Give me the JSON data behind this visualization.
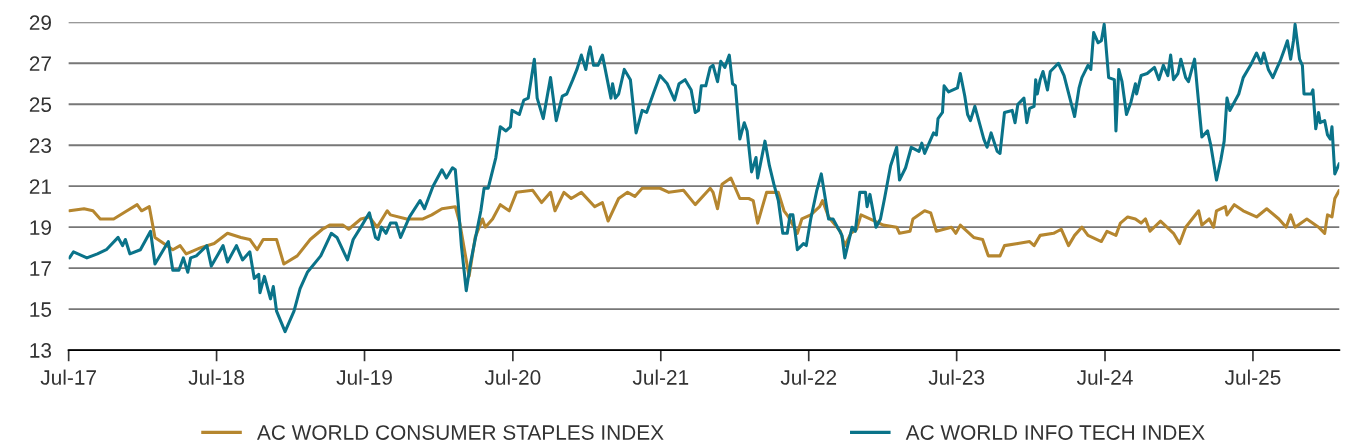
{
  "chart_data": {
    "type": "line",
    "xlim": [
      "2017-07-01",
      "2026-01-30"
    ],
    "ylim": [
      13,
      29
    ],
    "xticks": [
      {
        "value": "2017-07-01",
        "label": "Jul-17"
      },
      {
        "value": "2018-07-01",
        "label": "Jul-18"
      },
      {
        "value": "2019-07-01",
        "label": "Jul-19"
      },
      {
        "value": "2020-07-01",
        "label": "Jul-20"
      },
      {
        "value": "2021-07-01",
        "label": "Jul-21"
      },
      {
        "value": "2022-07-01",
        "label": "Jul-22"
      },
      {
        "value": "2023-07-01",
        "label": "Jul-23"
      },
      {
        "value": "2024-07-01",
        "label": "Jul-24"
      },
      {
        "value": "2025-07-01",
        "label": "Jul-25"
      }
    ],
    "yticks": [
      13,
      15,
      17,
      19,
      21,
      23,
      25,
      27,
      29
    ],
    "grid": "y",
    "legend": "bottom",
    "series": [
      {
        "name": "AC WORLD CONSUMER STAPLES INDEX",
        "color": "#b5862f",
        "x": [
          "2017-07-03",
          "2017-08-08",
          "2017-08-30",
          "2017-09-17",
          "2017-10-20",
          "2017-11-22",
          "2017-12-17",
          "2017-12-28",
          "2018-01-16",
          "2018-01-30",
          "2018-02-28",
          "2018-03-15",
          "2018-04-02",
          "2018-04-17",
          "2018-05-23",
          "2018-06-25",
          "2018-07-28",
          "2018-08-30",
          "2018-09-21",
          "2018-10-09",
          "2018-10-24",
          "2018-11-26",
          "2018-12-14",
          "2019-01-16",
          "2019-02-17",
          "2019-03-19",
          "2019-04-06",
          "2019-05-09",
          "2019-05-23",
          "2019-06-22",
          "2019-07-13",
          "2019-08-01",
          "2019-08-26",
          "2019-09-03",
          "2019-10-13",
          "2019-11-22",
          "2019-12-14",
          "2020-01-08",
          "2020-02-10",
          "2020-02-21",
          "2020-03-15",
          "2020-03-30",
          "2020-04-17",
          "2020-04-24",
          "2020-05-12",
          "2020-05-31",
          "2020-06-22",
          "2020-07-10",
          "2020-08-19",
          "2020-09-10",
          "2020-10-02",
          "2020-10-13",
          "2020-11-04",
          "2020-11-22",
          "2020-12-17",
          "2021-01-19",
          "2021-02-07",
          "2021-02-21",
          "2021-03-19",
          "2021-04-10",
          "2021-04-28",
          "2021-05-16",
          "2021-06-29",
          "2021-07-21",
          "2021-08-26",
          "2021-09-24",
          "2021-10-31",
          "2021-11-07",
          "2021-11-18",
          "2021-11-29",
          "2021-12-21",
          "2022-01-12",
          "2022-02-03",
          "2022-02-14",
          "2022-02-25",
          "2022-03-19",
          "2022-04-17",
          "2022-05-01",
          "2022-05-12",
          "2022-06-03",
          "2022-06-14",
          "2022-07-06",
          "2022-07-28",
          "2022-08-04",
          "2022-08-19",
          "2022-09-17",
          "2022-09-28",
          "2022-10-13",
          "2022-10-27",
          "2022-11-07",
          "2022-11-29",
          "2023-01-01",
          "2023-02-03",
          "2023-02-10",
          "2023-03-08",
          "2023-03-15",
          "2023-04-13",
          "2023-04-28",
          "2023-05-12",
          "2023-06-18",
          "2023-06-29",
          "2023-07-10",
          "2023-08-12",
          "2023-09-03",
          "2023-09-17",
          "2023-10-16",
          "2023-10-27",
          "2023-11-29",
          "2023-12-28",
          "2024-01-08",
          "2024-01-23",
          "2024-02-25",
          "2024-03-15",
          "2024-04-02",
          "2024-04-17",
          "2024-05-05",
          "2024-05-20",
          "2024-06-22",
          "2024-07-06",
          "2024-07-28",
          "2024-08-08",
          "2024-08-26",
          "2024-09-14",
          "2024-09-28",
          "2024-10-09",
          "2024-10-20",
          "2024-11-15",
          "2024-12-17",
          "2025-01-01",
          "2025-01-16",
          "2025-02-17",
          "2025-02-25",
          "2025-03-15",
          "2025-03-26",
          "2025-04-02",
          "2025-04-24",
          "2025-04-28",
          "2025-05-16",
          "2025-06-07",
          "2025-07-10",
          "2025-08-04",
          "2025-09-03",
          "2025-09-21",
          "2025-10-02",
          "2025-10-13",
          "2025-11-11",
          "2025-12-10",
          "2025-12-25",
          "2026-01-01",
          "2026-01-12",
          "2026-01-19",
          "2026-01-30"
        ],
        "values": [
          19.8,
          19.9,
          19.8,
          19.4,
          19.4,
          19.8,
          20.1,
          19.8,
          20.0,
          18.5,
          18.1,
          17.9,
          18.1,
          17.7,
          18.0,
          18.2,
          18.7,
          18.5,
          18.4,
          17.9,
          18.4,
          18.4,
          17.2,
          17.6,
          18.4,
          18.9,
          19.1,
          19.1,
          18.9,
          19.4,
          19.5,
          19.0,
          19.8,
          19.6,
          19.4,
          19.4,
          19.6,
          19.9,
          20.0,
          19.2,
          16.6,
          18.5,
          19.4,
          19.0,
          19.4,
          20.1,
          19.8,
          20.7,
          20.8,
          20.2,
          20.7,
          19.8,
          20.7,
          20.4,
          20.7,
          20.0,
          20.2,
          19.3,
          20.4,
          20.7,
          20.5,
          20.9,
          20.9,
          20.7,
          20.8,
          20.1,
          20.9,
          20.7,
          19.9,
          21.1,
          21.4,
          20.4,
          20.4,
          20.3,
          19.2,
          20.7,
          20.7,
          19.8,
          19.5,
          18.7,
          19.4,
          19.6,
          20.0,
          20.3,
          19.5,
          18.8,
          18.1,
          18.7,
          18.9,
          19.6,
          19.4,
          19.1,
          19.0,
          18.7,
          18.8,
          19.4,
          19.8,
          19.7,
          18.8,
          19.0,
          18.7,
          19.1,
          18.5,
          18.4,
          17.6,
          17.6,
          18.1,
          18.2,
          18.3,
          18.1,
          18.6,
          18.7,
          18.9,
          18.1,
          18.6,
          19.0,
          18.6,
          18.3,
          18.8,
          18.6,
          19.2,
          19.5,
          19.4,
          19.2,
          19.4,
          18.8,
          19.3,
          18.7,
          18.2,
          19.0,
          19.8,
          19.1,
          19.4,
          19.0,
          19.8,
          20.0,
          19.6,
          20.1,
          19.8,
          19.5,
          19.9,
          19.4,
          19.0,
          19.6,
          19.0,
          19.4,
          19.0,
          18.7,
          19.6,
          19.5,
          20.4,
          20.8
        ]
      },
      {
        "name": "AC WORLD INFO TECH INDEX",
        "color": "#0a7389",
        "x": [
          "2017-07-03",
          "2017-07-13",
          "2017-08-15",
          "2017-09-10",
          "2017-10-02",
          "2017-10-31",
          "2017-11-11",
          "2017-11-18",
          "2017-11-29",
          "2017-12-25",
          "2018-01-19",
          "2018-01-30",
          "2018-03-04",
          "2018-03-15",
          "2018-03-30",
          "2018-04-10",
          "2018-04-21",
          "2018-04-28",
          "2018-05-12",
          "2018-06-07",
          "2018-06-18",
          "2018-07-17",
          "2018-07-28",
          "2018-08-19",
          "2018-09-03",
          "2018-09-21",
          "2018-10-02",
          "2018-10-13",
          "2018-10-16",
          "2018-10-27",
          "2018-11-11",
          "2018-11-18",
          "2018-11-26",
          "2018-12-17",
          "2019-01-08",
          "2019-01-23",
          "2019-02-10",
          "2019-03-15",
          "2019-04-10",
          "2019-04-24",
          "2019-05-20",
          "2019-06-03",
          "2019-06-25",
          "2019-07-13",
          "2019-07-28",
          "2019-08-04",
          "2019-08-12",
          "2019-08-23",
          "2019-09-03",
          "2019-09-17",
          "2019-09-28",
          "2019-10-20",
          "2019-11-15",
          "2019-11-26",
          "2019-12-17",
          "2020-01-08",
          "2020-01-19",
          "2020-02-03",
          "2020-02-10",
          "2020-02-17",
          "2020-02-25",
          "2020-03-08",
          "2020-03-19",
          "2020-04-13",
          "2020-04-21",
          "2020-05-01",
          "2020-05-20",
          "2020-05-31",
          "2020-06-14",
          "2020-06-25",
          "2020-06-29",
          "2020-07-17",
          "2020-07-28",
          "2020-08-08",
          "2020-08-23",
          "2020-08-30",
          "2020-09-14",
          "2020-10-02",
          "2020-10-16",
          "2020-10-31",
          "2020-11-11",
          "2020-11-26",
          "2020-12-06",
          "2020-12-17",
          "2020-12-28",
          "2021-01-04",
          "2021-01-08",
          "2021-01-16",
          "2021-01-27",
          "2021-02-07",
          "2021-02-28",
          "2021-03-04",
          "2021-03-11",
          "2021-03-19",
          "2021-04-02",
          "2021-04-17",
          "2021-05-01",
          "2021-05-16",
          "2021-05-27",
          "2021-06-14",
          "2021-06-29",
          "2021-07-17",
          "2021-08-04",
          "2021-08-15",
          "2021-08-30",
          "2021-09-14",
          "2021-09-24",
          "2021-10-02",
          "2021-10-09",
          "2021-10-20",
          "2021-10-31",
          "2021-11-07",
          "2021-11-18",
          "2021-11-26",
          "2021-12-06",
          "2021-12-17",
          "2021-12-25",
          "2022-01-01",
          "2022-01-12",
          "2022-01-23",
          "2022-01-30",
          "2022-02-10",
          "2022-02-21",
          "2022-02-25",
          "2022-03-15",
          "2022-03-26",
          "2022-04-06",
          "2022-04-17",
          "2022-04-28",
          "2022-05-09",
          "2022-05-16",
          "2022-05-23",
          "2022-06-03",
          "2022-06-18",
          "2022-06-25",
          "2022-07-06",
          "2022-07-21",
          "2022-08-01",
          "2022-08-19",
          "2022-08-30",
          "2022-09-21",
          "2022-09-28",
          "2022-10-16",
          "2022-10-24",
          "2022-11-04",
          "2022-11-18",
          "2022-11-22",
          "2022-11-29",
          "2022-12-14",
          "2022-12-25",
          "2023-01-04",
          "2023-01-19",
          "2023-02-03",
          "2023-02-10",
          "2023-02-25",
          "2023-03-11",
          "2023-03-30",
          "2023-04-06",
          "2023-04-13",
          "2023-05-05",
          "2023-05-12",
          "2023-05-16",
          "2023-05-27",
          "2023-05-31",
          "2023-06-11",
          "2023-07-03",
          "2023-07-10",
          "2023-07-21",
          "2023-07-28",
          "2023-08-04",
          "2023-08-15",
          "2023-09-06",
          "2023-09-14",
          "2023-09-24",
          "2023-10-09",
          "2023-10-16",
          "2023-10-27",
          "2023-11-15",
          "2023-11-22",
          "2023-11-29",
          "2023-12-14",
          "2023-12-21",
          "2023-12-28",
          "2024-01-08",
          "2024-01-12",
          "2024-01-16",
          "2024-01-23",
          "2024-01-30",
          "2024-02-10",
          "2024-02-17",
          "2024-03-08",
          "2024-03-22",
          "2024-04-17",
          "2024-04-28",
          "2024-05-05",
          "2024-05-20",
          "2024-05-27",
          "2024-06-03",
          "2024-06-14",
          "2024-06-22",
          "2024-06-29",
          "2024-07-10",
          "2024-07-24",
          "2024-07-28",
          "2024-08-04",
          "2024-08-12",
          "2024-08-23",
          "2024-09-03",
          "2024-09-14",
          "2024-09-17",
          "2024-09-28",
          "2024-10-13",
          "2024-10-31",
          "2024-11-11",
          "2024-11-22",
          "2024-12-03",
          "2024-12-10",
          "2024-12-17",
          "2024-12-28",
          "2025-01-04",
          "2025-01-16",
          "2025-01-23",
          "2025-02-07",
          "2025-02-14",
          "2025-02-25",
          "2025-03-11",
          "2025-03-19",
          "2025-04-02",
          "2025-04-13",
          "2025-04-21",
          "2025-04-28",
          "2025-05-05",
          "2025-05-27",
          "2025-06-07",
          "2025-06-25",
          "2025-07-10",
          "2025-07-21",
          "2025-07-28",
          "2025-08-08",
          "2025-08-19",
          "2025-08-30",
          "2025-09-06",
          "2025-09-17",
          "2025-09-24",
          "2025-10-02",
          "2025-10-09",
          "2025-10-13",
          "2025-10-24",
          "2025-10-31",
          "2025-11-04",
          "2025-11-22",
          "2025-11-26",
          "2025-12-03",
          "2025-12-10",
          "2025-12-14",
          "2025-12-25",
          "2026-01-01",
          "2026-01-08",
          "2026-01-12",
          "2026-01-19",
          "2026-01-30"
        ],
        "values": [
          17.5,
          17.8,
          17.5,
          17.7,
          17.9,
          18.5,
          18.1,
          18.4,
          17.7,
          17.9,
          18.8,
          17.2,
          18.3,
          16.9,
          16.9,
          17.5,
          16.8,
          17.5,
          17.6,
          18.1,
          17.1,
          18.1,
          17.3,
          18.1,
          17.4,
          17.8,
          16.5,
          16.7,
          15.8,
          16.6,
          15.5,
          16.1,
          14.9,
          13.9,
          14.9,
          16.0,
          16.8,
          17.6,
          18.7,
          18.5,
          17.4,
          18.4,
          19.1,
          19.7,
          18.5,
          18.4,
          19.0,
          18.7,
          19.2,
          19.2,
          18.5,
          19.5,
          20.3,
          19.9,
          21.0,
          21.8,
          21.4,
          21.9,
          21.8,
          20.2,
          18.1,
          15.9,
          17.3,
          19.8,
          20.9,
          20.9,
          22.4,
          23.9,
          23.7,
          23.9,
          24.7,
          24.5,
          25.2,
          25.3,
          27.2,
          25.3,
          24.3,
          26.3,
          24.2,
          25.4,
          25.5,
          26.2,
          26.7,
          27.4,
          26.7,
          27.5,
          27.8,
          26.9,
          26.9,
          27.4,
          25.3,
          26.0,
          25.3,
          25.5,
          26.7,
          26.2,
          23.6,
          24.7,
          24.6,
          25.6,
          26.4,
          26.0,
          25.2,
          26.0,
          26.2,
          25.7,
          24.6,
          24.7,
          25.9,
          25.9,
          26.8,
          26.9,
          26.1,
          27.1,
          26.8,
          27.4,
          26.0,
          25.9,
          23.3,
          24.1,
          23.7,
          21.7,
          22.4,
          21.4,
          23.2,
          22.0,
          21.1,
          20.3,
          18.7,
          18.7,
          19.6,
          19.6,
          17.9,
          18.2,
          18.1,
          19.4,
          20.8,
          21.6,
          19.4,
          19.4,
          18.6,
          17.5,
          19.0,
          18.8,
          20.7,
          20.7,
          20.0,
          20.6,
          19.0,
          19.4,
          20.4,
          22.0,
          22.9,
          21.3,
          21.9,
          22.9,
          22.7,
          23.1,
          22.6,
          23.6,
          23.5,
          24.3,
          24.6,
          25.9,
          25.6,
          25.8,
          26.5,
          25.4,
          24.5,
          24.2,
          24.9,
          23.3,
          22.9,
          23.6,
          22.7,
          22.6,
          24.6,
          24.7,
          24.1,
          25.0,
          25.3,
          24.1,
          24.8,
          24.9,
          26.2,
          25.5,
          26.2,
          26.6,
          25.7,
          26.6,
          27.0,
          26.4,
          24.4,
          25.8,
          26.3,
          26.9,
          26.7,
          28.5,
          28.0,
          28.1,
          28.9,
          26.3,
          26.2,
          23.7,
          26.7,
          26.1,
          24.5,
          25.1,
          26.0,
          25.5,
          26.4,
          26.5,
          26.8,
          26.2,
          26.9,
          26.4,
          27.4,
          26.2,
          26.5,
          27.2,
          26.3,
          26.1,
          27.2,
          25.7,
          23.4,
          23.7,
          23.0,
          21.3,
          22.3,
          23.2,
          25.3,
          24.7,
          25.5,
          26.3,
          26.9,
          27.5,
          27.0,
          27.5,
          26.7,
          26.3,
          26.8,
          27.1,
          27.7,
          28.1,
          27.2,
          28.1,
          28.9,
          27.2,
          26.9,
          25.5,
          25.5,
          25.7,
          23.8,
          24.6,
          24.1,
          24.2,
          23.5,
          23.3,
          23.9,
          21.6,
          22.1
        ]
      }
    ]
  }
}
